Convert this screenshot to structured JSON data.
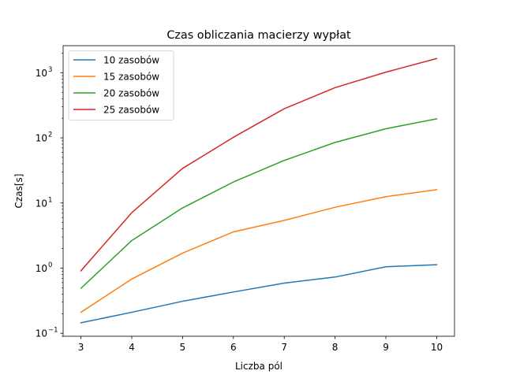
{
  "chart_data": {
    "type": "line",
    "title": "Czas obliczania macierzy wypłat",
    "xlabel": "Liczba pól",
    "ylabel": "Czas[s]",
    "yscale": "log",
    "x": [
      3,
      4,
      5,
      6,
      7,
      8,
      9,
      10
    ],
    "xlim": [
      2.65,
      10.35
    ],
    "ylim": [
      0.09,
      2600
    ],
    "xticks": [
      3,
      4,
      5,
      6,
      7,
      8,
      9,
      10
    ],
    "yticks": [
      {
        "value": 0.1,
        "base": "10",
        "exp": "−1"
      },
      {
        "value": 1,
        "base": "10",
        "exp": "0"
      },
      {
        "value": 10,
        "base": "10",
        "exp": "1"
      },
      {
        "value": 100,
        "base": "10",
        "exp": "2"
      },
      {
        "value": 1000,
        "base": "10",
        "exp": "3"
      }
    ],
    "grid": false,
    "legend_position": "top-left",
    "series": [
      {
        "name": "10 zasobów",
        "color": "#1f77b4",
        "values": [
          0.145,
          0.21,
          0.31,
          0.43,
          0.59,
          0.73,
          1.05,
          1.13
        ]
      },
      {
        "name": "15 zasobów",
        "color": "#ff7f0e",
        "values": [
          0.21,
          0.68,
          1.7,
          3.6,
          5.4,
          8.6,
          12.5,
          16
        ]
      },
      {
        "name": "20 zasobów",
        "color": "#2ca02c",
        "values": [
          0.49,
          2.65,
          8.4,
          21,
          45,
          85,
          138,
          196
        ]
      },
      {
        "name": "25 zasobów",
        "color": "#d62728",
        "values": [
          0.91,
          7.1,
          34,
          102,
          280,
          590,
          1020,
          1650
        ]
      }
    ]
  }
}
